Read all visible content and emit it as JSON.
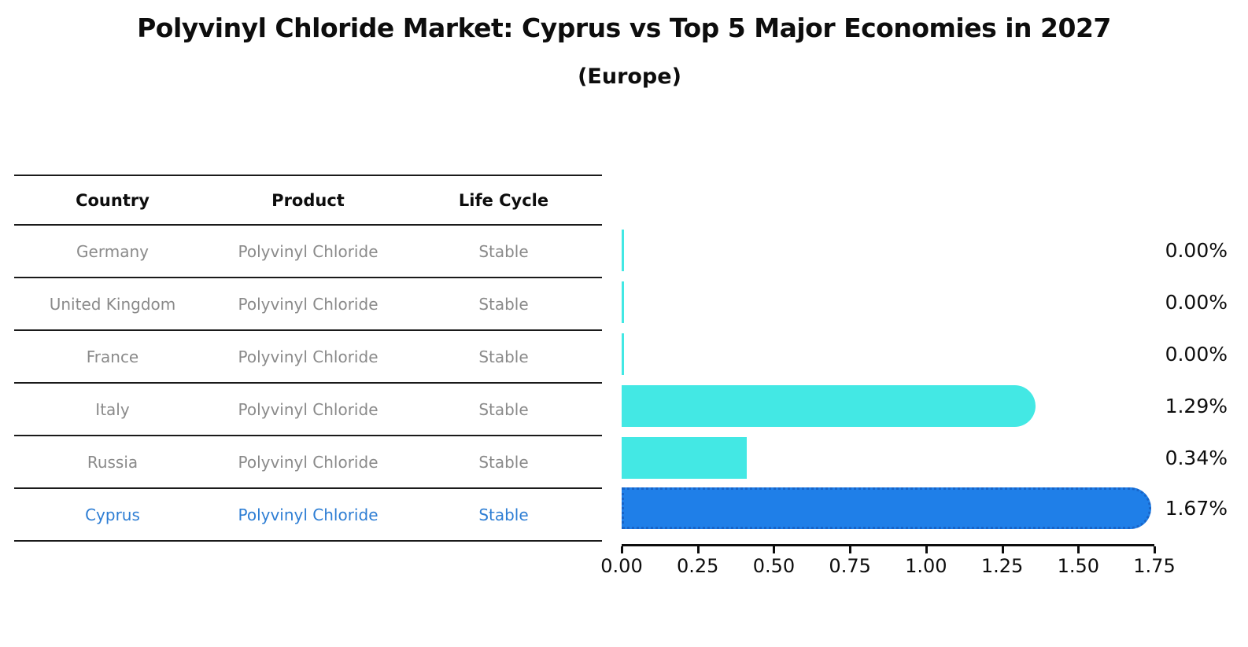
{
  "title": "Polyvinyl Chloride Market: Cyprus vs Top 5 Major Economies in 2027",
  "subtitle": "(Europe)",
  "table": {
    "headers": [
      "Country",
      "Product",
      "Life Cycle"
    ],
    "rows": [
      {
        "country": "Germany",
        "product": "Polyvinyl Chloride",
        "life_cycle": "Stable",
        "highlight": false
      },
      {
        "country": "United Kingdom",
        "product": "Polyvinyl Chloride",
        "life_cycle": "Stable",
        "highlight": false
      },
      {
        "country": "France",
        "product": "Polyvinyl Chloride",
        "life_cycle": "Stable",
        "highlight": false
      },
      {
        "country": "Italy",
        "product": "Polyvinyl Chloride",
        "life_cycle": "Stable",
        "highlight": false
      },
      {
        "country": "Russia",
        "product": "Polyvinyl Chloride",
        "life_cycle": "Stable",
        "highlight": false
      },
      {
        "country": "Cyprus",
        "product": "Polyvinyl Chloride",
        "life_cycle": "Stable",
        "highlight": true
      }
    ]
  },
  "chart_data": {
    "type": "bar",
    "orientation": "horizontal",
    "title": "Polyvinyl Chloride Market: Cyprus vs Top 5 Major Economies in 2027",
    "subtitle": "(Europe)",
    "categories": [
      "Germany",
      "United Kingdom",
      "France",
      "Italy",
      "Russia",
      "Cyprus"
    ],
    "values": [
      0.0,
      0.0,
      0.0,
      1.29,
      0.34,
      1.67
    ],
    "value_labels": [
      "0.00%",
      "0.00%",
      "0.00%",
      "1.29%",
      "0.34%",
      "1.67%"
    ],
    "highlight_index": 5,
    "xlim": [
      0,
      1.75
    ],
    "x_ticks": [
      "0.00",
      "0.25",
      "0.50",
      "0.75",
      "1.00",
      "1.25",
      "1.50",
      "1.75"
    ],
    "x_tick_values": [
      0.0,
      0.25,
      0.5,
      0.75,
      1.0,
      1.25,
      1.5,
      1.75
    ],
    "grid": false,
    "legend": false,
    "bar_color": "#43e8e4",
    "highlight_bar_color": "#1f7fe8",
    "highlight_border_color": "#1864c8",
    "highlight_text_color": "#2e7ed4",
    "table_text_color": "#8a8a8a",
    "axis_color": "#0d0d0d"
  }
}
